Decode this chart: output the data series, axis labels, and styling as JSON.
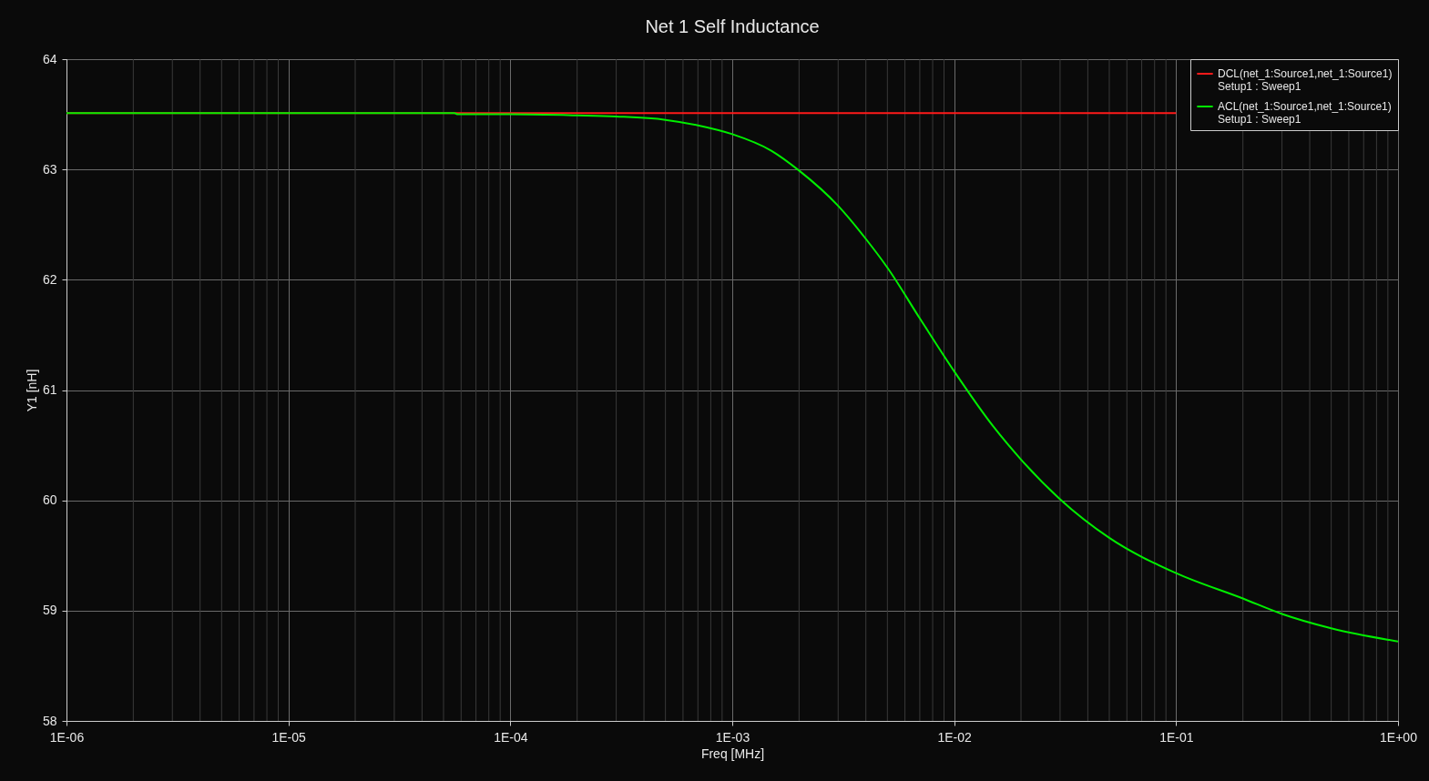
{
  "chart_data": {
    "type": "line",
    "title": "Net 1 Self Inductance",
    "xlabel": "Freq [MHz]",
    "ylabel": "Y1 [nH]",
    "log": "x",
    "grid": true,
    "legend": "top right",
    "line_style": "solid",
    "marker": "none",
    "xlim": [
      1e-06,
      1
    ],
    "xticks": [
      {
        "value": 1e-06,
        "label": "1E-06"
      },
      {
        "value": 1e-05,
        "label": "1E-05"
      },
      {
        "value": 0.0001,
        "label": "1E-04"
      },
      {
        "value": 0.001,
        "label": "1E-03"
      },
      {
        "value": 0.01,
        "label": "1E-02"
      },
      {
        "value": 0.1,
        "label": "1E-01"
      },
      {
        "value": 1,
        "label": "1E+00"
      }
    ],
    "ylim": [
      58,
      64
    ],
    "yticks": [
      58,
      59,
      60,
      61,
      62,
      63,
      64
    ],
    "series": [
      {
        "name": "DCL(net_1:Source1,net_1:Source1)\nSetup1 : Sweep1",
        "color": "#ff1a1a",
        "x": [
          1e-06,
          0.0001,
          0.01,
          0.1
        ],
        "values": [
          63.51,
          63.51,
          63.51,
          63.51
        ]
      },
      {
        "name": "ACL(net_1:Source1,net_1:Source1)\nSetup1 : Sweep1",
        "color": "#00ee00",
        "x": [
          1e-06,
          1e-05,
          5.6e-05,
          5.8e-05,
          0.0001,
          0.0002,
          0.0003,
          0.0005,
          0.0007,
          0.001,
          0.0015,
          0.002,
          0.003,
          0.004,
          0.005,
          0.007,
          0.01,
          0.015,
          0.02,
          0.03,
          0.05,
          0.1,
          0.2,
          0.3,
          0.5,
          1
        ],
        "values": [
          63.51,
          63.51,
          63.51,
          63.5,
          63.5,
          63.49,
          63.48,
          63.45,
          63.4,
          63.32,
          63.17,
          62.99,
          62.67,
          62.37,
          62.11,
          61.65,
          61.17,
          60.67,
          60.37,
          60.01,
          59.66,
          59.34,
          59.11,
          58.97,
          58.84,
          58.72
        ]
      }
    ]
  }
}
